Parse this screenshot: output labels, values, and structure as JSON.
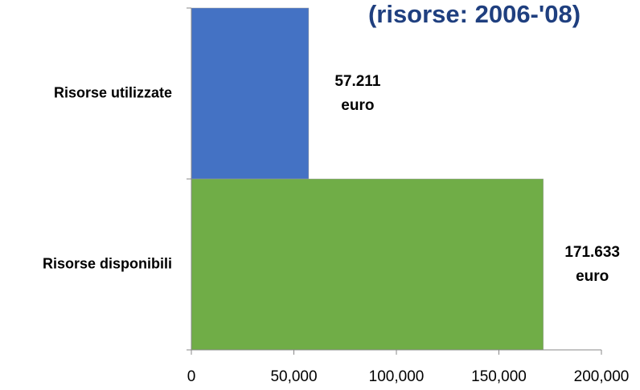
{
  "chart_data": {
    "type": "barh",
    "title": "(risorse: 2006-'08)",
    "categories": [
      "Risorse utilizzate",
      "Risorse disponibili"
    ],
    "values": [
      57211,
      171633
    ],
    "value_labels": [
      "57.211 euro",
      "171.633 euro"
    ],
    "colors": [
      "#4472c4",
      "#70ad47"
    ],
    "xlim": [
      0,
      200000
    ],
    "xticks": [
      0,
      {
        "value": 50000,
        "label": "50,000"
      },
      {
        "value": 100000,
        "label": "100,000"
      },
      {
        "value": 150000,
        "label": "150,000"
      },
      {
        "value": 200000,
        "label": "200,000"
      }
    ]
  }
}
